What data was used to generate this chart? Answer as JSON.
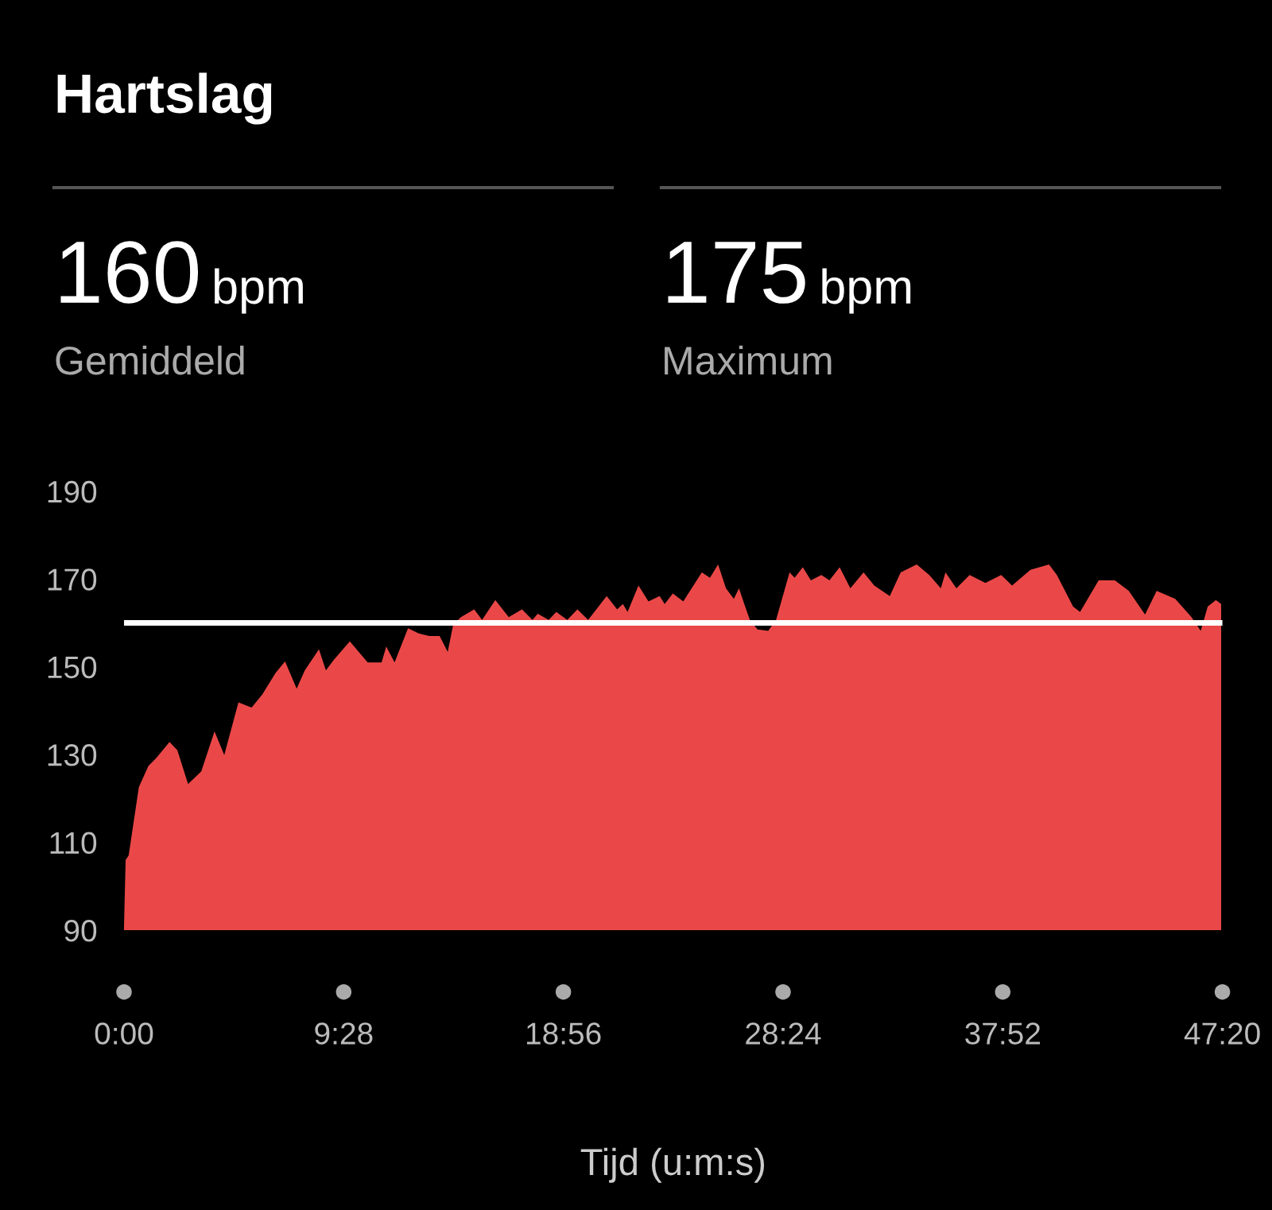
{
  "chart_data": {
    "type": "area",
    "title": "Hartslag",
    "xlabel": "Tijd (u:m:s)",
    "annotations": [
      "160",
      "bpm",
      "Gemiddeld",
      "175",
      "bpm",
      "Maximum"
    ],
    "x": [
      0,
      0.07,
      0.2,
      0.64,
      1.05,
      1.39,
      1.96,
      2.3,
      2.76,
      3.33,
      3.9,
      4.32,
      4.93,
      5.5,
      5.96,
      6.53,
      6.94,
      7.44,
      7.79,
      8.4,
      8.7,
      9.04,
      9.73,
      10.5,
      11.1,
      11.3,
      11.66,
      12.24,
      12.7,
      13.15,
      13.6,
      13.95,
      14.18,
      14.52,
      15.09,
      15.43,
      16,
      16.58,
      17.15,
      17.6,
      17.83,
      18.3,
      18.63,
      19.1,
      19.54,
      20,
      20.8,
      21.25,
      21.5,
      21.7,
      22.17,
      22.6,
      23.08,
      23.3,
      23.65,
      24.1,
      24.9,
      25.25,
      25.6,
      25.94,
      26.28,
      26.5,
      26.73,
      26.97,
      27.3,
      27.76,
      28.1,
      28.68,
      28.9,
      29.25,
      29.6,
      30.05,
      30.4,
      30.84,
      31.3,
      31.87,
      32.33,
      33,
      33.47,
      34.16,
      34.7,
      35.2,
      35.4,
      35.87,
      36.44,
      37.12,
      37.8,
      38.27,
      39.06,
      39.86,
      40.2,
      40.9,
      41.2,
      42,
      42.7,
      43.3,
      44,
      44.5,
      45.3,
      46,
      46.4,
      46.7,
      47.05,
      47.28
    ],
    "series": [
      {
        "color": "#ea4848",
        "values": [
          91,
          106,
          107,
          122.6,
          127.4,
          129.2,
          132.9,
          131,
          123.3,
          126.2,
          135.3,
          129.9,
          141.9,
          140.7,
          143.7,
          148.6,
          151.2,
          145,
          149.2,
          154,
          149.2,
          151.6,
          155.8,
          151,
          151,
          154.6,
          151,
          158.8,
          157.6,
          157,
          157,
          153.4,
          159.5,
          161.3,
          163.1,
          160.7,
          165.2,
          161.3,
          163.1,
          160.7,
          162.1,
          160.7,
          162.5,
          160.7,
          163.1,
          160.7,
          166.1,
          163.1,
          164.3,
          162.5,
          168.5,
          164.9,
          166.1,
          164.3,
          166.7,
          164.9,
          171.5,
          170.3,
          173.3,
          167.9,
          165.5,
          167.9,
          164.3,
          160.7,
          158.5,
          158.2,
          160.7,
          171.5,
          170.3,
          172.7,
          169.7,
          170.9,
          169.7,
          172.7,
          167.9,
          171.5,
          168.5,
          166.1,
          171.5,
          173.3,
          170.9,
          167.9,
          171.5,
          167.9,
          170.9,
          169.1,
          170.9,
          168.5,
          172.1,
          173.3,
          170.9,
          163.7,
          162.5,
          169.7,
          169.7,
          167.3,
          161.9,
          167.3,
          165.5,
          161.3,
          158.2,
          163.7,
          165.2,
          164.3
        ]
      }
    ],
    "xlim": [
      0,
      47.333
    ],
    "xticks": [
      {
        "value": 0,
        "label": "0:00"
      },
      {
        "value": 9.467,
        "label": "9:28"
      },
      {
        "value": 18.933,
        "label": "18:56"
      },
      {
        "value": 28.4,
        "label": "28:24"
      },
      {
        "value": 37.867,
        "label": "37:52"
      },
      {
        "value": 47.333,
        "label": "47:20"
      }
    ],
    "ylim": [
      90,
      190
    ],
    "yticks": [
      90,
      110,
      130,
      150,
      170,
      190
    ],
    "ref_lines": [
      {
        "axis": "y",
        "value": 160,
        "color": "#ffffff"
      }
    ],
    "grid": false
  }
}
